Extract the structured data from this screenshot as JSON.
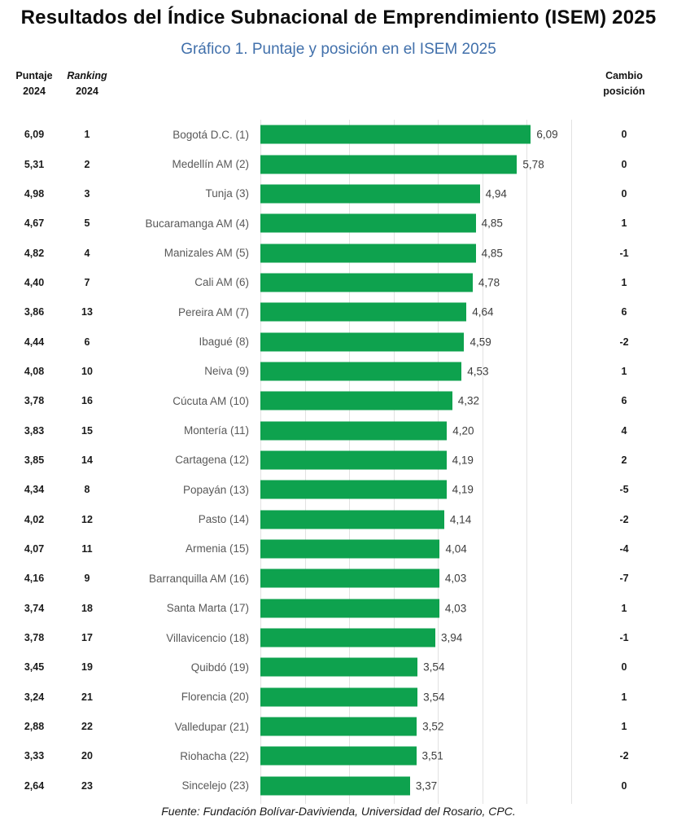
{
  "page_title": "Resultados del Índice Subnacional de Emprendimiento (ISEM) 2025",
  "headers": {
    "puntaje": {
      "line1": "Puntaje",
      "line2": "2024"
    },
    "ranking": {
      "line1": "Ranking",
      "line2": "2024"
    },
    "cambio": {
      "line1": "Cambio",
      "line2": "posición"
    }
  },
  "chart_data": {
    "type": "bar",
    "orientation": "horizontal",
    "title": "Gráfico 1. Puntaje y posición en el ISEM 2025",
    "xlabel": "",
    "ylabel": "",
    "xlim": [
      0,
      7
    ],
    "gridline_step": 1,
    "grid": true,
    "bar_color": "#0ea24e",
    "title_color": "#4170ab",
    "gridline_color": "#e2e2e2",
    "categories": [
      "Bogotá D.C. (1)",
      "Medellín AM (2)",
      "Tunja (3)",
      "Bucaramanga AM (4)",
      "Manizales AM (5)",
      "Cali AM (6)",
      "Pereira AM (7)",
      "Ibagué (8)",
      "Neiva (9)",
      "Cúcuta AM (10)",
      "Montería (11)",
      "Cartagena (12)",
      "Popayán (13)",
      "Pasto (14)",
      "Armenia (15)",
      "Barranquilla AM (16)",
      "Santa Marta (17)",
      "Villavicencio (18)",
      "Quibdó (19)",
      "Florencia (20)",
      "Valledupar (21)",
      "Riohacha (22)",
      "Sincelejo (23)"
    ],
    "values": [
      6.09,
      5.78,
      4.94,
      4.85,
      4.85,
      4.78,
      4.64,
      4.59,
      4.53,
      4.32,
      4.2,
      4.19,
      4.19,
      4.14,
      4.04,
      4.03,
      4.03,
      3.94,
      3.54,
      3.54,
      3.52,
      3.51,
      3.37
    ],
    "value_labels": [
      "6,09",
      "5,78",
      "4,94",
      "4,85",
      "4,85",
      "4,78",
      "4,64",
      "4,59",
      "4,53",
      "4,32",
      "4,20",
      "4,19",
      "4,19",
      "4,14",
      "4,04",
      "4,03",
      "4,03",
      "3,94",
      "3,54",
      "3,54",
      "3,52",
      "3,51",
      "3,37"
    ],
    "puntaje_2024": [
      "6,09",
      "5,31",
      "4,98",
      "4,67",
      "4,82",
      "4,40",
      "3,86",
      "4,44",
      "4,08",
      "3,78",
      "3,83",
      "3,85",
      "4,34",
      "4,02",
      "4,07",
      "4,16",
      "3,74",
      "3,78",
      "3,45",
      "3,24",
      "2,88",
      "3,33",
      "2,64"
    ],
    "ranking_2024": [
      "1",
      "2",
      "3",
      "5",
      "4",
      "7",
      "13",
      "6",
      "10",
      "16",
      "15",
      "14",
      "8",
      "12",
      "11",
      "9",
      "18",
      "17",
      "19",
      "21",
      "22",
      "20",
      "23"
    ],
    "cambio_posicion": [
      "0",
      "0",
      "0",
      "1",
      "-1",
      "1",
      "6",
      "-2",
      "1",
      "6",
      "4",
      "2",
      "-5",
      "-2",
      "-4",
      "-7",
      "1",
      "-1",
      "0",
      "1",
      "1",
      "-2",
      "0"
    ]
  },
  "footer": "Fuente: Fundación Bolívar-Davivienda, Universidad del Rosario, CPC."
}
